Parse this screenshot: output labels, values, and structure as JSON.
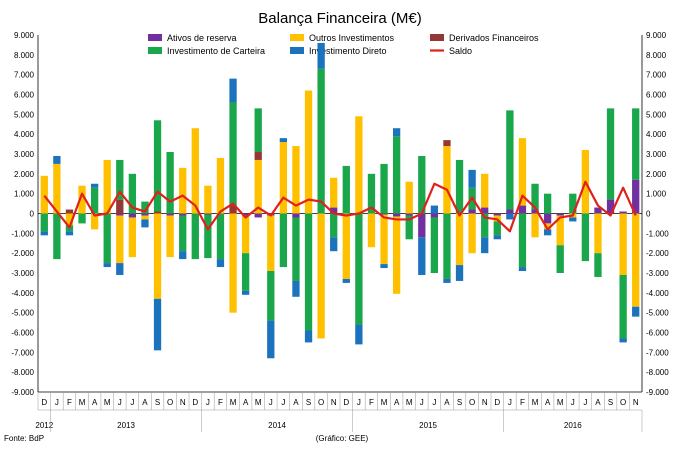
{
  "chart_data": {
    "type": "bar",
    "title": "Balança Financeira (M€)",
    "source_note": "Fonte: BdP",
    "graphic_note": "(Gráfico: GEE)",
    "ylim": [
      -9000,
      9000
    ],
    "y_ticks": [
      "9.000",
      "8.000",
      "7.000",
      "6.000",
      "5.000",
      "4.000",
      "3.000",
      "2.000",
      "1.000",
      "0",
      "-1.000",
      "-2.000",
      "-3.000",
      "-4.000",
      "-5.000",
      "-6.000",
      "-7.000",
      "-8.000",
      "-9.000"
    ],
    "grid": false,
    "legend_position": "top",
    "stacked": true,
    "x_month_labels": [
      "D",
      "J",
      "F",
      "M",
      "A",
      "M",
      "J",
      "J",
      "A",
      "S",
      "O",
      "N",
      "D",
      "J",
      "F",
      "M",
      "A",
      "M",
      "J",
      "J",
      "A",
      "S",
      "O",
      "N",
      "D",
      "J",
      "F",
      "M",
      "A",
      "M",
      "J",
      "J",
      "A",
      "S",
      "O",
      "N",
      "D",
      "J",
      "F",
      "M",
      "A",
      "M",
      "J",
      "J",
      "A",
      "S",
      "O",
      "N"
    ],
    "year_labels": [
      {
        "label": "2012",
        "start": 0,
        "end": 0
      },
      {
        "label": "2013",
        "start": 1,
        "end": 12
      },
      {
        "label": "2014",
        "start": 13,
        "end": 24
      },
      {
        "label": "2015",
        "start": 25,
        "end": 36
      },
      {
        "label": "2016",
        "start": 37,
        "end": 47
      }
    ],
    "series": [
      {
        "name": "Ativos de reserva",
        "color": "#7030a0",
        "values": [
          0,
          0,
          0,
          0,
          0,
          0,
          -100,
          -200,
          -100,
          0,
          -100,
          -100,
          0,
          -50,
          0,
          0,
          -100,
          -200,
          -100,
          0,
          -200,
          0,
          0,
          300,
          0,
          0,
          0,
          -50,
          -150,
          -100,
          -1200,
          -200,
          0,
          0,
          200,
          300,
          -100,
          200,
          400,
          200,
          -500,
          -100,
          0,
          0,
          300,
          700,
          100,
          1700
        ]
      },
      {
        "name": "Outros Investimentos",
        "color": "#ffc000",
        "values": [
          1900,
          2500,
          -600,
          1400,
          -800,
          2700,
          -2400,
          -2000,
          -200,
          -4300,
          -2100,
          2300,
          4300,
          1400,
          2800,
          -5000,
          -1900,
          2700,
          -2800,
          3600,
          3400,
          6200,
          -6300,
          1500,
          -3300,
          4900,
          -1700,
          -2500,
          -3900,
          1600,
          0,
          0,
          3400,
          -2600,
          -2000,
          1700,
          -300,
          0,
          3400,
          -1200,
          -300,
          -1500,
          -200,
          3200,
          -2000,
          0,
          -3100,
          -4700
        ]
      },
      {
        "name": "Derivados Financeiros",
        "color": "#953735",
        "values": [
          0,
          0,
          200,
          0,
          0,
          0,
          700,
          0,
          0,
          100,
          0,
          0,
          0,
          0,
          0,
          400,
          0,
          400,
          0,
          0,
          0,
          0,
          0,
          0,
          0,
          0,
          0,
          0,
          0,
          0,
          0,
          0,
          300,
          0,
          0,
          0,
          0,
          0,
          0,
          0,
          0,
          0,
          0,
          0,
          0,
          0,
          0,
          0
        ]
      },
      {
        "name": "Investimento de Carteira",
        "color": "#1aa64a",
        "values": [
          -900,
          -2300,
          -300,
          -500,
          1300,
          -2500,
          2000,
          2000,
          600,
          4600,
          3100,
          -1800,
          -2300,
          -2200,
          -2300,
          5200,
          -1900,
          2200,
          -2500,
          -2700,
          -3200,
          -5900,
          7300,
          -1200,
          2400,
          -5600,
          2000,
          2500,
          3900,
          -1200,
          2900,
          -2800,
          -3300,
          2700,
          1100,
          -1200,
          -700,
          5000,
          -2700,
          1300,
          1000,
          -1400,
          1000,
          -2400,
          -1200,
          4600,
          -3200,
          3600
        ]
      },
      {
        "name": "Investimento Direto",
        "color": "#1b73be",
        "values": [
          -200,
          400,
          -200,
          0,
          200,
          -200,
          -600,
          0,
          -400,
          -2600,
          0,
          -400,
          0,
          0,
          -400,
          1200,
          -200,
          0,
          -1900,
          200,
          -800,
          -600,
          1300,
          -700,
          -200,
          -1000,
          0,
          -200,
          400,
          0,
          -1900,
          400,
          -200,
          -800,
          900,
          -800,
          -200,
          -300,
          -200,
          0,
          -300,
          0,
          -200,
          0,
          0,
          0,
          -200,
          -500
        ]
      }
    ],
    "balance_series": {
      "name": "Saldo",
      "color": "#e0201b",
      "values": [
        900,
        100,
        -700,
        1000,
        -100,
        0,
        1100,
        300,
        100,
        1100,
        600,
        900,
        400,
        -800,
        100,
        500,
        -200,
        300,
        -100,
        800,
        400,
        700,
        600,
        0,
        -100,
        0,
        300,
        -200,
        -300,
        -300,
        0,
        1500,
        1200,
        -100,
        800,
        -200,
        -300,
        -900,
        900,
        300,
        -800,
        -200,
        -100,
        1600,
        400,
        -100,
        1300,
        -100
      ]
    }
  }
}
